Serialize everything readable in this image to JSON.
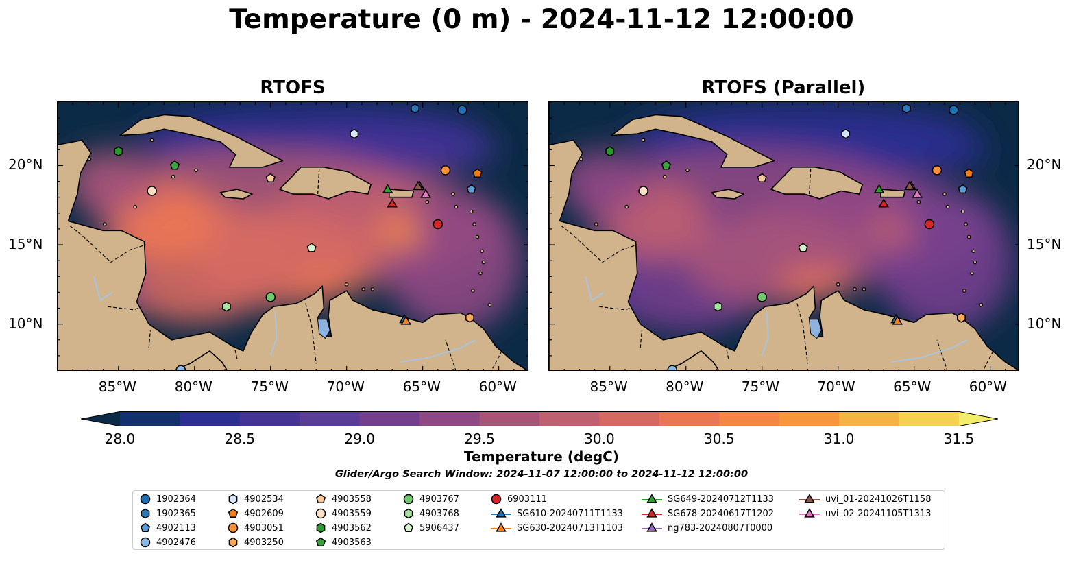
{
  "title": "Temperature (0 m) - 2024-11-12 12:00:00",
  "panels": [
    {
      "title": "RTOFS"
    },
    {
      "title": "RTOFS (Parallel)"
    }
  ],
  "axes": {
    "lon_ticks": [
      "85°W",
      "80°W",
      "75°W",
      "70°W",
      "65°W",
      "60°W"
    ],
    "lat_ticks": [
      "20°N",
      "15°N",
      "10°N"
    ],
    "lon_range": [
      -89,
      -58
    ],
    "lat_range": [
      7,
      24
    ]
  },
  "colorbar": {
    "label": "Temperature (degC)",
    "ticks": [
      "28.0",
      "28.5",
      "29.0",
      "29.5",
      "30.0",
      "30.5",
      "31.0",
      "31.5"
    ],
    "range": [
      28.0,
      31.5
    ],
    "colors": [
      "#0b2a45",
      "#13306e",
      "#2b2f90",
      "#453396",
      "#5a3d96",
      "#743f8e",
      "#8e4884",
      "#a75479",
      "#c05f70",
      "#d66a63",
      "#ea7654",
      "#f48545",
      "#f7963b",
      "#f6b343",
      "#f4d250",
      "#f3ee6a"
    ]
  },
  "search_window": "Glider/Argo Search Window: 2024-11-07 12:00:00 to 2024-11-12 12:00:00",
  "colors": {
    "land": "#d2b48c",
    "ocean_deep": "#0b2a45",
    "lake": "#8fb3e0",
    "river": "#a8c4dd"
  },
  "observations": [
    {
      "id": "1902364",
      "marker": "circle",
      "color": "#1f6fb4",
      "lon": -62.4,
      "lat": 23.5
    },
    {
      "id": "1902365",
      "marker": "hexagon",
      "color": "#2c77b8",
      "lon": -65.5,
      "lat": 23.6
    },
    {
      "id": "4902113",
      "marker": "pentagon",
      "color": "#5b9bd5",
      "lon": -61.8,
      "lat": 18.5
    },
    {
      "id": "4902476",
      "marker": "circle",
      "color": "#8ab9e6",
      "lon": -80.9,
      "lat": 7.1
    },
    {
      "id": "4902534",
      "marker": "hexagon",
      "color": "#d6e8f7",
      "lon": -69.5,
      "lat": 22.0
    },
    {
      "id": "4902609",
      "marker": "pentagon",
      "color": "#f57f17",
      "lon": -61.4,
      "lat": 19.5
    },
    {
      "id": "4903051",
      "marker": "circle",
      "color": "#f7923a",
      "lon": -63.5,
      "lat": 19.7
    },
    {
      "id": "4903250",
      "marker": "hexagon",
      "color": "#f9a85a",
      "lon": -61.9,
      "lat": 10.4
    },
    {
      "id": "4903558",
      "marker": "pentagon",
      "color": "#fbc99b",
      "lon": -75.0,
      "lat": 19.2
    },
    {
      "id": "4903559",
      "marker": "circle",
      "color": "#fde0c5",
      "lon": -82.8,
      "lat": 18.4
    },
    {
      "id": "4903562",
      "marker": "hexagon",
      "color": "#2a9a2a",
      "lon": -85.0,
      "lat": 20.9
    },
    {
      "id": "4903563",
      "marker": "pentagon",
      "color": "#3aa33a",
      "lon": -81.3,
      "lat": 20.0
    },
    {
      "id": "4903767",
      "marker": "circle",
      "color": "#6fc96f",
      "lon": -75.0,
      "lat": 11.7
    },
    {
      "id": "4903768",
      "marker": "hexagon",
      "color": "#a8e0a0",
      "lon": -77.9,
      "lat": 11.1
    },
    {
      "id": "5906437",
      "marker": "pentagon",
      "color": "#d6f5cf",
      "lon": -72.3,
      "lat": 14.8
    },
    {
      "id": "6903111",
      "marker": "circle",
      "color": "#d62728",
      "lon": -64.0,
      "lat": 16.3
    },
    {
      "id": "SG610-20240711T1133",
      "marker": "triangle",
      "color": "#1f77b4",
      "lon": -66.2,
      "lat": 10.3
    },
    {
      "id": "SG630-20240713T1103",
      "marker": "triangle",
      "color": "#ff7f0e",
      "lon": -66.1,
      "lat": 10.2
    },
    {
      "id": "SG649-20240712T1133",
      "marker": "triangle",
      "color": "#2ca02c",
      "lon": -67.3,
      "lat": 18.5
    },
    {
      "id": "SG678-20240617T1202",
      "marker": "triangle",
      "color": "#d62728",
      "lon": -67.0,
      "lat": 17.6
    },
    {
      "id": "ng783-20240807T0000",
      "marker": "triangle",
      "color": "#9467bd",
      "lon": -65.2,
      "lat": 18.7
    },
    {
      "id": "uvi_01-20241026T1158",
      "marker": "triangle",
      "color": "#8c564b",
      "lon": -65.3,
      "lat": 18.7
    },
    {
      "id": "uvi_02-20241105T1313",
      "marker": "triangle",
      "color": "#e377c2",
      "lon": -64.8,
      "lat": 18.2
    }
  ]
}
